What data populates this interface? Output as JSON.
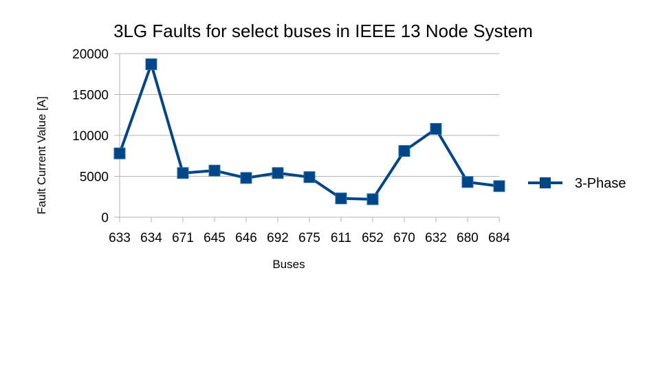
{
  "chart_data": {
    "type": "line",
    "title": "3LG Faults for select buses in IEEE 13 Node System",
    "xlabel": "Buses",
    "ylabel": "Fault Current Value [A]",
    "ylim": [
      0,
      20000
    ],
    "yticks": [
      0,
      5000,
      10000,
      15000,
      20000
    ],
    "grid": true,
    "legend_position": "right",
    "categories": [
      "633",
      "634",
      "671",
      "645",
      "646",
      "692",
      "675",
      "611",
      "652",
      "670",
      "632",
      "680",
      "684"
    ],
    "series": [
      {
        "name": "3-Phase",
        "color": "#004586",
        "marker": "square",
        "values": [
          7800,
          18700,
          5400,
          5700,
          4800,
          5400,
          4900,
          2300,
          2200,
          8100,
          10800,
          4300,
          3800
        ]
      }
    ]
  }
}
